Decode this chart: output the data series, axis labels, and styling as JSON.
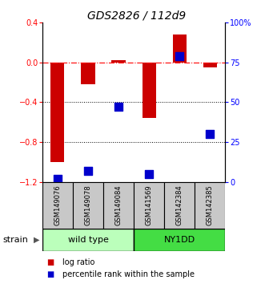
{
  "title": "GDS2826 / 112d9",
  "samples": [
    "GSM149076",
    "GSM149078",
    "GSM149084",
    "GSM141569",
    "GSM142384",
    "GSM142385"
  ],
  "log_ratio": [
    -1.0,
    -0.22,
    0.02,
    -0.56,
    0.28,
    -0.05
  ],
  "percentile": [
    2,
    7,
    47,
    5,
    79,
    30
  ],
  "ylim_left": [
    -1.2,
    0.4
  ],
  "ylim_right": [
    0,
    100
  ],
  "yticks_left": [
    -1.2,
    -0.8,
    -0.4,
    0.0,
    0.4
  ],
  "yticks_right": [
    0,
    25,
    50,
    75,
    100
  ],
  "ytick_labels_right": [
    "0",
    "25",
    "50",
    "75",
    "100%"
  ],
  "hline_y": 0.0,
  "dotted_lines": [
    -0.4,
    -0.8
  ],
  "bar_color": "#cc0000",
  "percentile_color": "#0000cc",
  "wild_type_label": "wild type",
  "ny1dd_label": "NY1DD",
  "strain_label": "strain",
  "wild_type_color": "#bbffbb",
  "ny1dd_color": "#44dd44",
  "legend_log_ratio": "log ratio",
  "legend_percentile": "percentile rank within the sample",
  "bar_width": 0.45,
  "percentile_marker_size": 55,
  "title_fontsize": 10,
  "label_fontsize": 6,
  "strain_fontsize": 8,
  "legend_fontsize": 7,
  "tick_fontsize": 7
}
